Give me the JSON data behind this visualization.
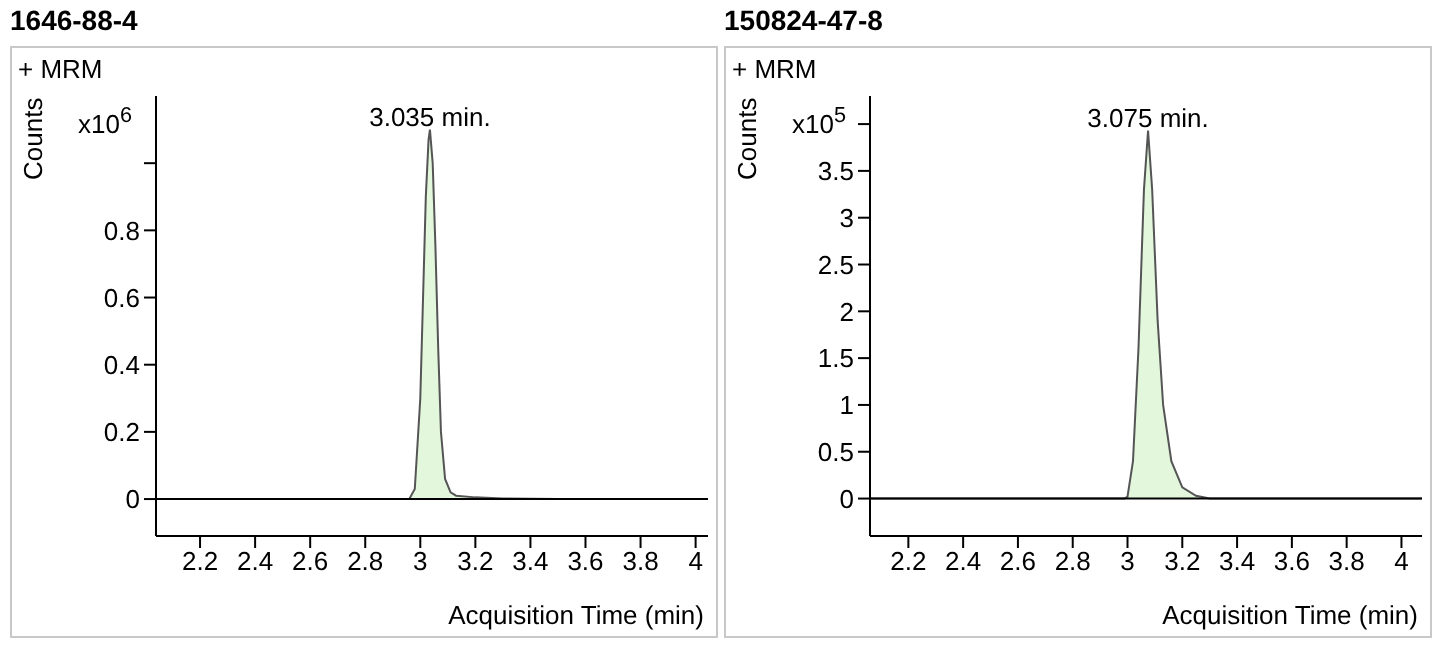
{
  "chart_data": [
    {
      "type": "area",
      "title": "1646-88-4",
      "xlabel": "Acquisition Time (min)",
      "ylabel": "Counts",
      "annotations": [
        "+ MRM",
        "x10$^{6}$",
        {
          "text": "3.035 min.",
          "x": 3.035,
          "y": 1.1
        }
      ],
      "series": [
        {
          "color": "#e2f7dc",
          "x": [
            2.04,
            2.96,
            2.98,
            3.0,
            3.01,
            3.02,
            3.03,
            3.035,
            3.045,
            3.055,
            3.065,
            3.075,
            3.09,
            3.11,
            3.13,
            3.2,
            3.3,
            3.5,
            4.045
          ],
          "values": [
            0,
            0,
            0.03,
            0.3,
            0.6,
            0.9,
            1.07,
            1.1,
            1.0,
            0.75,
            0.45,
            0.2,
            0.06,
            0.02,
            0.01,
            0.005,
            0.002,
            0,
            0
          ]
        }
      ],
      "xlim": [
        2.04,
        4.045
      ],
      "xticks": [
        2.2,
        2.4,
        2.6,
        2.8,
        3,
        3.2,
        3.4,
        3.6,
        3.8,
        4
      ],
      "ylim": [
        -0.11,
        1.2
      ],
      "yticks": [
        0,
        0.2,
        0.4,
        0.6,
        0.8,
        {
          "value": 1,
          "label": null
        }
      ],
      "ref_lines": [
        {
          "axis": "y",
          "value": 0,
          "color": "#000000"
        }
      ],
      "grid": false,
      "legend": false
    },
    {
      "type": "area",
      "title": "150824-47-8",
      "xlabel": "Acquisition Time (min)",
      "ylabel": "Counts",
      "annotations": [
        "+ MRM",
        "x10$^{5}$",
        {
          "text": "3.075 min.",
          "x": 3.075,
          "y": 3.93
        }
      ],
      "series": [
        {
          "color": "#e2f7dc",
          "x": [
            2.06,
            2.99,
            3.0,
            3.02,
            3.04,
            3.06,
            3.075,
            3.09,
            3.11,
            3.13,
            3.16,
            3.2,
            3.25,
            3.3,
            4.075
          ],
          "values": [
            0,
            0,
            0.02,
            0.4,
            1.6,
            3.3,
            3.93,
            3.3,
            1.9,
            1.0,
            0.4,
            0.12,
            0.03,
            0,
            0
          ]
        }
      ],
      "xlim": [
        2.06,
        4.075
      ],
      "xticks": [
        2.2,
        2.4,
        2.6,
        2.8,
        3,
        3.2,
        3.4,
        3.6,
        3.8,
        4
      ],
      "ylim": [
        -0.4,
        4.3
      ],
      "yticks": [
        0,
        0.5,
        1,
        1.5,
        2,
        2.5,
        3,
        3.5,
        {
          "value": 4,
          "label": null
        }
      ],
      "ref_lines": [
        {
          "axis": "y",
          "value": 0,
          "color": "#000000"
        }
      ],
      "grid": false,
      "legend": false
    }
  ]
}
